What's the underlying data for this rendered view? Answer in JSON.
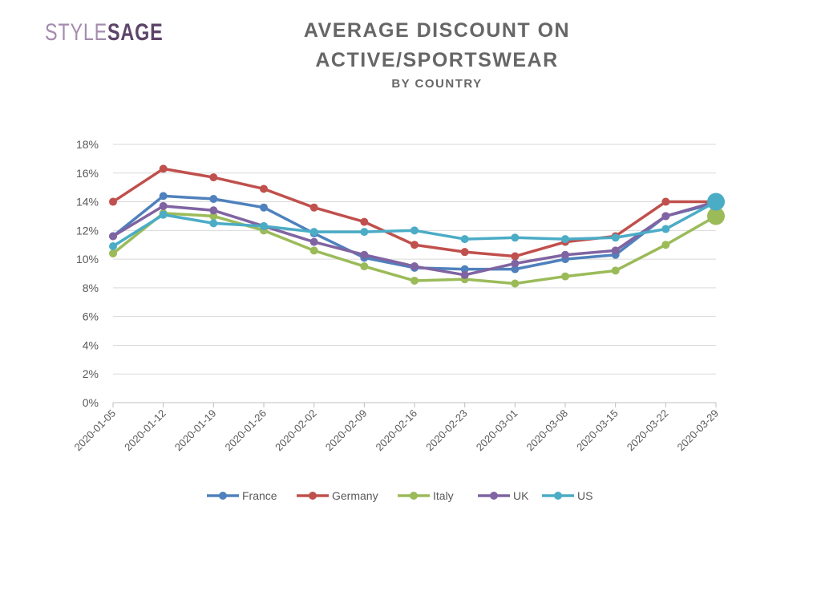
{
  "header": {
    "logo_part1": "STYLE",
    "logo_part2": "SAGE",
    "title_line1": "AVERAGE DISCOUNT ON",
    "title_line2": "ACTIVE/SPORTSWEAR",
    "subtitle": "BY COUNTRY"
  },
  "chart_data": {
    "type": "line",
    "title": "AVERAGE DISCOUNT ON ACTIVE/SPORTSWEAR",
    "subtitle": "BY COUNTRY",
    "xlabel": "",
    "ylabel": "",
    "x": [
      "2020-01-05",
      "2020-01-12",
      "2020-01-19",
      "2020-01-26",
      "2020-02-02",
      "2020-02-09",
      "2020-02-16",
      "2020-02-23",
      "2020-03-01",
      "2020-03-08",
      "2020-03-15",
      "2020-03-22",
      "2020-03-29"
    ],
    "ylim": [
      0,
      18
    ],
    "y_ticks": [
      "0%",
      "2%",
      "4%",
      "6%",
      "8%",
      "10%",
      "12%",
      "14%",
      "16%",
      "18%"
    ],
    "y_unit": "%",
    "grid": true,
    "legend_position": "bottom",
    "series": [
      {
        "name": "France",
        "color": "#4f81bd",
        "values": [
          11.6,
          14.4,
          14.2,
          13.6,
          11.8,
          10.1,
          9.4,
          9.3,
          9.3,
          10.0,
          10.3,
          13.0,
          13.9
        ]
      },
      {
        "name": "Germany",
        "color": "#c0504d",
        "values": [
          14.0,
          16.3,
          15.7,
          14.9,
          13.6,
          12.6,
          11.0,
          10.5,
          10.2,
          11.2,
          11.6,
          14.0,
          14.0
        ]
      },
      {
        "name": "Italy",
        "color": "#9bbb59",
        "values": [
          10.4,
          13.2,
          13.0,
          12.0,
          10.6,
          9.5,
          8.5,
          8.6,
          8.3,
          8.8,
          9.2,
          11.0,
          13.0
        ]
      },
      {
        "name": "UK",
        "color": "#8064a2",
        "values": [
          11.6,
          13.7,
          13.4,
          12.3,
          11.2,
          10.3,
          9.5,
          8.9,
          9.7,
          10.3,
          10.6,
          13.0,
          14.0
        ]
      },
      {
        "name": "US",
        "color": "#4bacc6",
        "values": [
          10.9,
          13.1,
          12.5,
          12.3,
          11.9,
          11.9,
          12.0,
          11.4,
          11.5,
          11.4,
          11.5,
          12.1,
          14.0
        ]
      }
    ]
  }
}
